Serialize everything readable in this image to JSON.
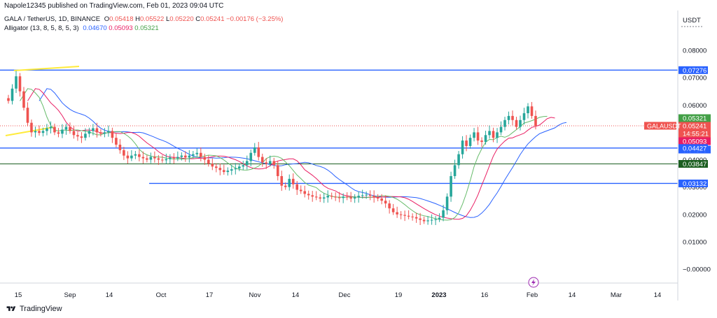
{
  "header": {
    "published": "Napole12345 published on TradingView.com, Feb 01, 2023 09:04 UTC"
  },
  "legend": {
    "symbol": "GALA / TetherUS, 1D, BINANCE",
    "o_label": "O",
    "o": "0.05418",
    "h_label": "H",
    "h": "0.05522",
    "l_label": "L",
    "l": "0.05220",
    "c_label": "C",
    "c": "0.05241",
    "change": "−0.00176 (−3.25%)",
    "indicator": "Alligator (13, 8, 5, 8, 5, 3)",
    "jaw": "0.04670",
    "teeth": "0.05093",
    "lips": "0.05321"
  },
  "axis": {
    "currency": "USDT"
  },
  "footer": {
    "brand": "TradingView"
  },
  "colors": {
    "up": "#26a69a",
    "down": "#ef5350",
    "hline": "#2962ff",
    "jaw": "#2962ff",
    "teeth": "#e91e63",
    "lips": "#66bb6a",
    "trend": "#ffeb3b",
    "greenline": "#1b5e20"
  },
  "chart_data": {
    "type": "candlestick",
    "ylim": [
      -0.005,
      0.085
    ],
    "y_ticks": [
      "0.08000",
      "0.07000",
      "0.06000",
      "0.05000",
      "0.04000",
      "0.03000",
      "0.02000",
      "0.01000",
      "−0.00000"
    ],
    "x_ticks": [
      "15",
      "Sep",
      "14",
      "Oct",
      "17",
      "Nov",
      "14",
      "Dec",
      "19",
      "2023",
      "16",
      "Feb",
      "14",
      "Mar",
      "14"
    ],
    "horizontal_levels": [
      {
        "value": 0.07276,
        "label": "0.07276",
        "color": "#2962ff"
      },
      {
        "value": 0.04427,
        "label": "0.04427",
        "color": "#2962ff"
      },
      {
        "value": 0.03847,
        "label": "0.03847",
        "color": "#1b5e20"
      },
      {
        "value": 0.03132,
        "label": "0.03132",
        "color": "#2962ff"
      }
    ],
    "price_badges": [
      {
        "label": "0.05321",
        "value": 0.05321,
        "color": "#43a047"
      },
      {
        "label": "0.05241",
        "value": 0.05241,
        "color": "#ef5350"
      },
      {
        "label": "14:55:21",
        "value": 0.05241,
        "color": "#ef5350"
      },
      {
        "label": "0.05093",
        "value": 0.05093,
        "color": "#e91e63"
      },
      {
        "label": "0.04670",
        "value": 0.0467,
        "color": "#2962ff"
      }
    ],
    "last_price_tag": "GALAUSDT",
    "close": [
      0.0615,
      0.066,
      0.0705,
      0.065,
      0.059,
      0.0535,
      0.05,
      0.0505,
      0.0498,
      0.0505,
      0.0515,
      0.052,
      0.05,
      0.0495,
      0.051,
      0.052,
      0.0505,
      0.049,
      0.0485,
      0.048,
      0.0495,
      0.0505,
      0.0515,
      0.05,
      0.0495,
      0.05,
      0.0505,
      0.048,
      0.0455,
      0.0435,
      0.0415,
      0.0405,
      0.0415,
      0.042,
      0.041,
      0.0405,
      0.04,
      0.041,
      0.0405,
      0.04,
      0.0398,
      0.0402,
      0.0408,
      0.0405,
      0.041,
      0.0415,
      0.0408,
      0.0415,
      0.042,
      0.0425,
      0.041,
      0.04,
      0.0385,
      0.0375,
      0.037,
      0.0362,
      0.0355,
      0.036,
      0.0365,
      0.0368,
      0.0375,
      0.038,
      0.0395,
      0.0425,
      0.0445,
      0.041,
      0.039,
      0.0385,
      0.0395,
      0.038,
      0.034,
      0.0305,
      0.03,
      0.033,
      0.031,
      0.029,
      0.0285,
      0.0275,
      0.027,
      0.0265,
      0.0262,
      0.0258,
      0.0262,
      0.0268,
      0.0265,
      0.0262,
      0.026,
      0.0265,
      0.0262,
      0.0258,
      0.0262,
      0.0268,
      0.027,
      0.0272,
      0.0268,
      0.0262,
      0.0258,
      0.025,
      0.024,
      0.0222,
      0.0208,
      0.02,
      0.0198,
      0.0195,
      0.0192,
      0.019,
      0.0185,
      0.018,
      0.0175,
      0.0178,
      0.018,
      0.0182,
      0.0188,
      0.0215,
      0.0265,
      0.034,
      0.038,
      0.042,
      0.047,
      0.045,
      0.048,
      0.05,
      0.047,
      0.0465,
      0.049,
      0.0505,
      0.048,
      0.05,
      0.052,
      0.0545,
      0.056,
      0.0545,
      0.052,
      0.0545,
      0.057,
      0.0595,
      0.056,
      0.0524
    ],
    "alligator": {
      "jaw": {
        "name": "Jaw",
        "last": 0.0467
      },
      "teeth": {
        "name": "Teeth",
        "last": 0.05093
      },
      "lips": {
        "name": "Lips",
        "last": 0.05321
      }
    }
  }
}
